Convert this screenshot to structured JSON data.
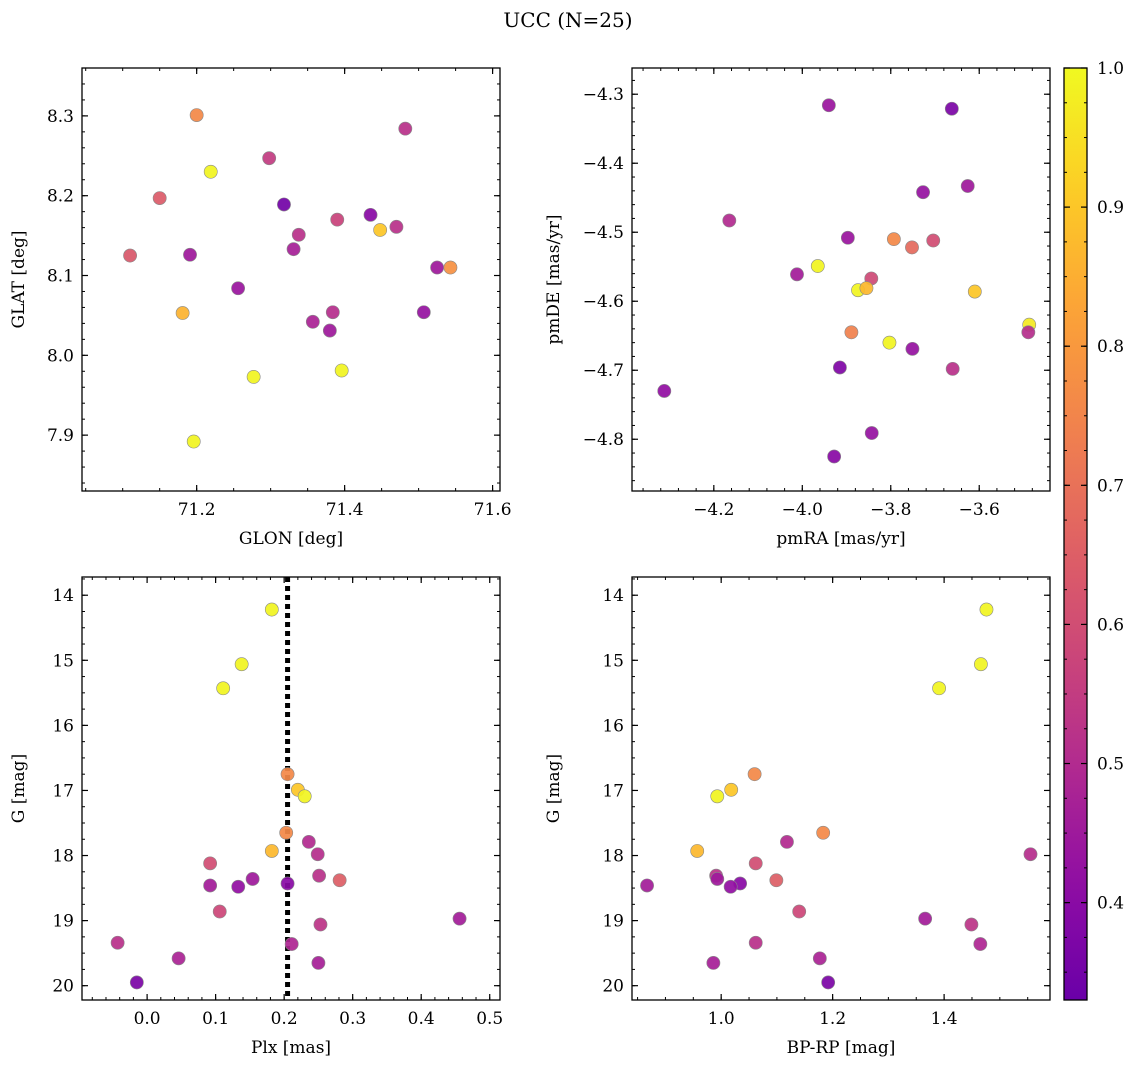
{
  "figure_title": "UCC (N=25)",
  "colorbar": {
    "colormap": "plasma",
    "range": [
      0.33,
      1.0
    ],
    "ticks": [
      0.4,
      0.5,
      0.6,
      0.7,
      0.8,
      0.9,
      1.0
    ],
    "tick_labels": [
      "0.4",
      "0.5",
      "0.6",
      "0.7",
      "0.8",
      "0.9",
      "1.0"
    ]
  },
  "chart_data": [
    {
      "type": "scatter",
      "title": "",
      "xlabel": "GLON [deg]",
      "ylabel": "GLAT [deg]",
      "xlim": [
        71.045,
        71.61
      ],
      "ylim": [
        7.83,
        8.36
      ],
      "invert_y": false,
      "xticks": [
        71.2,
        71.4,
        71.6
      ],
      "xtick_labels": [
        "71.2",
        "71.4",
        "71.6"
      ],
      "yticks": [
        7.9,
        8.0,
        8.1,
        8.2,
        8.3
      ],
      "ytick_labels": [
        "7.9",
        "8.0",
        "8.1",
        "8.2",
        "8.3"
      ],
      "points": [
        {
          "x": 71.2,
          "y": 8.301,
          "c": 0.76
        },
        {
          "x": 71.482,
          "y": 8.284,
          "c": 0.52
        },
        {
          "x": 71.298,
          "y": 8.247,
          "c": 0.55
        },
        {
          "x": 71.219,
          "y": 8.23,
          "c": 0.99
        },
        {
          "x": 71.15,
          "y": 8.197,
          "c": 0.64
        },
        {
          "x": 71.318,
          "y": 8.189,
          "c": 0.35
        },
        {
          "x": 71.435,
          "y": 8.176,
          "c": 0.4
        },
        {
          "x": 71.39,
          "y": 8.17,
          "c": 0.57
        },
        {
          "x": 71.47,
          "y": 8.161,
          "c": 0.52
        },
        {
          "x": 71.448,
          "y": 8.157,
          "c": 0.9
        },
        {
          "x": 71.338,
          "y": 8.151,
          "c": 0.52
        },
        {
          "x": 71.331,
          "y": 8.133,
          "c": 0.47
        },
        {
          "x": 71.11,
          "y": 8.125,
          "c": 0.63
        },
        {
          "x": 71.191,
          "y": 8.126,
          "c": 0.45
        },
        {
          "x": 71.525,
          "y": 8.11,
          "c": 0.45
        },
        {
          "x": 71.543,
          "y": 8.11,
          "c": 0.78
        },
        {
          "x": 71.256,
          "y": 8.084,
          "c": 0.44
        },
        {
          "x": 71.181,
          "y": 8.053,
          "c": 0.86
        },
        {
          "x": 71.384,
          "y": 8.054,
          "c": 0.51
        },
        {
          "x": 71.507,
          "y": 8.054,
          "c": 0.43
        },
        {
          "x": 71.357,
          "y": 8.042,
          "c": 0.48
        },
        {
          "x": 71.38,
          "y": 8.031,
          "c": 0.45
        },
        {
          "x": 71.396,
          "y": 7.981,
          "c": 0.99
        },
        {
          "x": 71.277,
          "y": 7.973,
          "c": 0.99
        },
        {
          "x": 71.196,
          "y": 7.892,
          "c": 0.99
        }
      ]
    },
    {
      "type": "scatter",
      "title": "",
      "xlabel": "pmRA [mas/yr]",
      "ylabel": "pmDE [mas/yr]",
      "xlim": [
        -4.385,
        -3.44
      ],
      "ylim": [
        -4.875,
        -4.262
      ],
      "invert_y": false,
      "xticks": [
        -4.2,
        -4.0,
        -3.8,
        -3.6
      ],
      "xtick_labels": [
        "−4.2",
        "−4.0",
        "−3.8",
        "−3.6"
      ],
      "yticks": [
        -4.8,
        -4.7,
        -4.6,
        -4.5,
        -4.4,
        -4.3
      ],
      "ytick_labels": [
        "−4.8",
        "−4.7",
        "−4.6",
        "−4.5",
        "−4.4",
        "−4.3"
      ],
      "points": [
        {
          "x": -3.94,
          "y": -4.316,
          "c": 0.44
        },
        {
          "x": -3.662,
          "y": -4.321,
          "c": 0.37
        },
        {
          "x": -3.727,
          "y": -4.442,
          "c": 0.43
        },
        {
          "x": -3.626,
          "y": -4.433,
          "c": 0.45
        },
        {
          "x": -4.165,
          "y": -4.483,
          "c": 0.5
        },
        {
          "x": -3.897,
          "y": -4.508,
          "c": 0.44
        },
        {
          "x": -3.793,
          "y": -4.51,
          "c": 0.76
        },
        {
          "x": -3.752,
          "y": -4.522,
          "c": 0.68
        },
        {
          "x": -3.704,
          "y": -4.512,
          "c": 0.6
        },
        {
          "x": -4.012,
          "y": -4.561,
          "c": 0.46
        },
        {
          "x": -3.965,
          "y": -4.549,
          "c": 0.99
        },
        {
          "x": -3.844,
          "y": -4.567,
          "c": 0.59
        },
        {
          "x": -3.874,
          "y": -4.584,
          "c": 0.99
        },
        {
          "x": -3.855,
          "y": -4.581,
          "c": 0.87
        },
        {
          "x": -3.61,
          "y": -4.586,
          "c": 0.9
        },
        {
          "x": -3.487,
          "y": -4.634,
          "c": 0.97
        },
        {
          "x": -3.489,
          "y": -4.645,
          "c": 0.51
        },
        {
          "x": -3.889,
          "y": -4.645,
          "c": 0.74
        },
        {
          "x": -3.803,
          "y": -4.66,
          "c": 0.99
        },
        {
          "x": -3.751,
          "y": -4.669,
          "c": 0.43
        },
        {
          "x": -3.66,
          "y": -4.698,
          "c": 0.52
        },
        {
          "x": -3.915,
          "y": -4.696,
          "c": 0.38
        },
        {
          "x": -4.312,
          "y": -4.73,
          "c": 0.42
        },
        {
          "x": -3.843,
          "y": -4.791,
          "c": 0.43
        },
        {
          "x": -3.928,
          "y": -4.825,
          "c": 0.4
        }
      ]
    },
    {
      "type": "scatter",
      "title": "",
      "xlabel": "Plx [mas]",
      "ylabel": "G [mag]",
      "xlim": [
        -0.095,
        0.515
      ],
      "ylim": [
        13.72,
        20.22
      ],
      "invert_y": true,
      "vline": {
        "x": 0.205,
        "style": "dotted"
      },
      "xticks": [
        0.0,
        0.1,
        0.2,
        0.3,
        0.4,
        0.5
      ],
      "xtick_labels": [
        "0.0",
        "0.1",
        "0.2",
        "0.3",
        "0.4",
        "0.5"
      ],
      "yticks": [
        14,
        15,
        16,
        17,
        18,
        19,
        20
      ],
      "ytick_labels": [
        "14",
        "15",
        "16",
        "17",
        "18",
        "19",
        "20"
      ],
      "points": [
        {
          "x": 0.182,
          "y": 14.22,
          "c": 0.99
        },
        {
          "x": 0.138,
          "y": 15.06,
          "c": 0.99
        },
        {
          "x": 0.111,
          "y": 15.43,
          "c": 0.99
        },
        {
          "x": 0.205,
          "y": 16.75,
          "c": 0.76
        },
        {
          "x": 0.22,
          "y": 16.99,
          "c": 0.9
        },
        {
          "x": 0.23,
          "y": 17.09,
          "c": 0.99
        },
        {
          "x": 0.203,
          "y": 17.65,
          "c": 0.76
        },
        {
          "x": 0.236,
          "y": 17.79,
          "c": 0.5
        },
        {
          "x": 0.182,
          "y": 17.93,
          "c": 0.87
        },
        {
          "x": 0.249,
          "y": 17.98,
          "c": 0.51
        },
        {
          "x": 0.092,
          "y": 18.12,
          "c": 0.6
        },
        {
          "x": 0.251,
          "y": 18.31,
          "c": 0.52
        },
        {
          "x": 0.154,
          "y": 18.36,
          "c": 0.45
        },
        {
          "x": 0.281,
          "y": 18.38,
          "c": 0.65
        },
        {
          "x": 0.205,
          "y": 18.43,
          "c": 0.4
        },
        {
          "x": 0.092,
          "y": 18.46,
          "c": 0.46
        },
        {
          "x": 0.133,
          "y": 18.48,
          "c": 0.42
        },
        {
          "x": 0.106,
          "y": 18.86,
          "c": 0.58
        },
        {
          "x": 0.456,
          "y": 18.97,
          "c": 0.46
        },
        {
          "x": 0.253,
          "y": 19.06,
          "c": 0.53
        },
        {
          "x": -0.043,
          "y": 19.34,
          "c": 0.52
        },
        {
          "x": 0.211,
          "y": 19.36,
          "c": 0.49
        },
        {
          "x": 0.046,
          "y": 19.58,
          "c": 0.48
        },
        {
          "x": 0.25,
          "y": 19.65,
          "c": 0.47
        },
        {
          "x": -0.015,
          "y": 19.95,
          "c": 0.37
        }
      ]
    },
    {
      "type": "scatter",
      "title": "",
      "xlabel": "BP-RP [mag]",
      "ylabel": "G [mag]",
      "xlim": [
        0.84,
        1.59
      ],
      "ylim": [
        13.72,
        20.22
      ],
      "invert_y": true,
      "xticks": [
        1.0,
        1.2,
        1.4
      ],
      "xtick_labels": [
        "1.0",
        "1.2",
        "1.4"
      ],
      "yticks": [
        14,
        15,
        16,
        17,
        18,
        19,
        20
      ],
      "ytick_labels": [
        "14",
        "15",
        "16",
        "17",
        "18",
        "19",
        "20"
      ],
      "points": [
        {
          "x": 1.476,
          "y": 14.22,
          "c": 0.99
        },
        {
          "x": 1.466,
          "y": 15.06,
          "c": 0.99
        },
        {
          "x": 1.391,
          "y": 15.43,
          "c": 0.99
        },
        {
          "x": 1.06,
          "y": 16.75,
          "c": 0.76
        },
        {
          "x": 1.018,
          "y": 16.99,
          "c": 0.9
        },
        {
          "x": 0.993,
          "y": 17.09,
          "c": 0.99
        },
        {
          "x": 1.183,
          "y": 17.65,
          "c": 0.76
        },
        {
          "x": 1.118,
          "y": 17.79,
          "c": 0.5
        },
        {
          "x": 0.957,
          "y": 17.93,
          "c": 0.87
        },
        {
          "x": 1.555,
          "y": 17.98,
          "c": 0.51
        },
        {
          "x": 1.062,
          "y": 18.12,
          "c": 0.6
        },
        {
          "x": 0.991,
          "y": 18.31,
          "c": 0.52
        },
        {
          "x": 0.993,
          "y": 18.36,
          "c": 0.45
        },
        {
          "x": 1.099,
          "y": 18.38,
          "c": 0.65
        },
        {
          "x": 1.034,
          "y": 18.43,
          "c": 0.4
        },
        {
          "x": 0.867,
          "y": 18.46,
          "c": 0.46
        },
        {
          "x": 1.017,
          "y": 18.48,
          "c": 0.42
        },
        {
          "x": 1.14,
          "y": 18.86,
          "c": 0.58
        },
        {
          "x": 1.366,
          "y": 18.97,
          "c": 0.46
        },
        {
          "x": 1.449,
          "y": 19.06,
          "c": 0.53
        },
        {
          "x": 1.062,
          "y": 19.34,
          "c": 0.52
        },
        {
          "x": 1.465,
          "y": 19.36,
          "c": 0.49
        },
        {
          "x": 1.177,
          "y": 19.58,
          "c": 0.48
        },
        {
          "x": 0.986,
          "y": 19.65,
          "c": 0.47
        },
        {
          "x": 1.192,
          "y": 19.95,
          "c": 0.37
        }
      ]
    }
  ]
}
